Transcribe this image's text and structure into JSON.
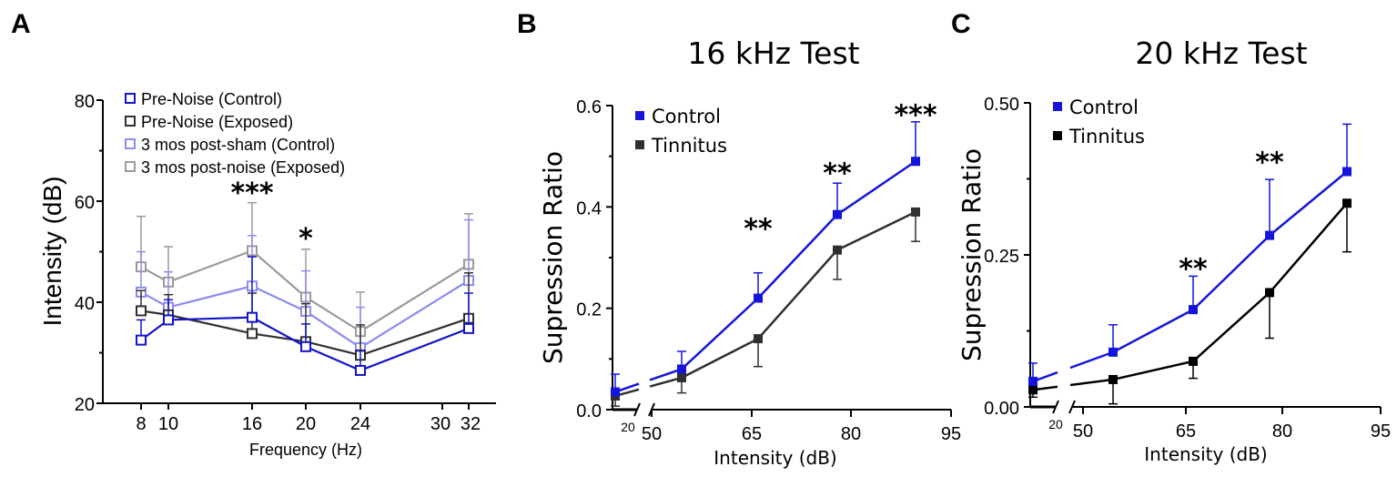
{
  "chart_data": [
    {
      "panel": "A",
      "type": "line",
      "title": "",
      "xlabel": "Frequency (Hz)",
      "ylabel": "Intensity (dB)",
      "x_ticks": [
        "8",
        "10",
        "16",
        "20",
        "24",
        "30",
        "32"
      ],
      "x": [
        8,
        10,
        16,
        20,
        24,
        32
      ],
      "ylim": [
        20,
        80
      ],
      "y_ticks": [
        "20",
        "40",
        "60",
        "80"
      ],
      "series": [
        {
          "name": "Pre-Noise (Control)",
          "color": "#1414c8",
          "values": [
            32.5,
            36.5,
            37,
            31.2,
            26.5,
            34.8
          ],
          "err": [
            4,
            4,
            12,
            4.5,
            4,
            7
          ]
        },
        {
          "name": "Pre-Noise (Exposed)",
          "color": "#303030",
          "values": [
            38.3,
            37.5,
            33.8,
            32.2,
            29.5,
            36.8
          ],
          "err": [
            4,
            4,
            8,
            7.5,
            6,
            9
          ]
        },
        {
          "name": "3 mos post-sham (Control)",
          "color": "#8c8cf0",
          "values": [
            42,
            39,
            43.2,
            38.2,
            31,
            44.3
          ],
          "err": [
            8,
            7,
            10,
            8,
            8,
            12
          ]
        },
        {
          "name": "3 mos post-noise (Exposed)",
          "color": "#9a9a9a",
          "values": [
            47,
            44,
            50.2,
            41,
            34.2,
            47.5
          ],
          "err": [
            10,
            7,
            9.5,
            9.5,
            7.8,
            10
          ]
        }
      ],
      "annotations": [
        {
          "text": "***",
          "x": 16,
          "y": 62
        },
        {
          "text": "*",
          "x": 20,
          "y": 53
        }
      ]
    },
    {
      "panel": "B",
      "type": "line",
      "title": "16 kHz Test",
      "xlabel": "Intensity (dB)",
      "ylabel": "Supression Ratio",
      "x_ticks": [
        "20",
        "50",
        "65",
        "80",
        "95"
      ],
      "x": [
        20,
        55,
        66,
        78,
        90
      ],
      "ylim": [
        0,
        0.6
      ],
      "y_ticks": [
        "0.0",
        "0.2",
        "0.4",
        "0.6"
      ],
      "series": [
        {
          "name": "Control",
          "color": "#1414dc",
          "values": [
            0.035,
            0.08,
            0.22,
            0.385,
            0.49
          ],
          "err": [
            0.035,
            0.035,
            0.05,
            0.062,
            0.078
          ]
        },
        {
          "name": "Tinnitus",
          "color": "#303030",
          "values": [
            0.027,
            0.063,
            0.14,
            0.315,
            0.39
          ],
          "err": [
            0.02,
            0.03,
            0.055,
            0.058,
            0.058
          ]
        }
      ],
      "annotations": [
        {
          "text": "**",
          "x": 66,
          "y": 0.36
        },
        {
          "text": "**",
          "x": 78,
          "y": 0.47
        },
        {
          "text": "***",
          "x": 90,
          "y": 0.585
        }
      ]
    },
    {
      "panel": "C",
      "type": "line",
      "title": "20 kHz Test",
      "xlabel": "Intensity (dB)",
      "ylabel": "Supression Ratio",
      "x_ticks": [
        "20",
        "50",
        "65",
        "80",
        "95"
      ],
      "x": [
        20,
        55,
        66,
        78,
        90
      ],
      "ylim": [
        0,
        0.5
      ],
      "y_ticks": [
        "0.00",
        "0.25",
        "0.50"
      ],
      "series": [
        {
          "name": "Control",
          "color": "#1414dc",
          "values": [
            0.042,
            0.09,
            0.16,
            0.282,
            0.387
          ],
          "err": [
            0.03,
            0.045,
            0.055,
            0.092,
            0.078
          ]
        },
        {
          "name": "Tinnitus",
          "color": "#000000",
          "values": [
            0.028,
            0.045,
            0.075,
            0.188,
            0.335
          ],
          "err": [
            0.012,
            0.04,
            0.028,
            0.075,
            0.08
          ]
        }
      ],
      "annotations": [
        {
          "text": "**",
          "x": 66,
          "y": 0.23
        },
        {
          "text": "**",
          "x": 78,
          "y": 0.405
        }
      ]
    }
  ],
  "panel_labels": {
    "a": "A",
    "b": "B",
    "c": "C"
  }
}
